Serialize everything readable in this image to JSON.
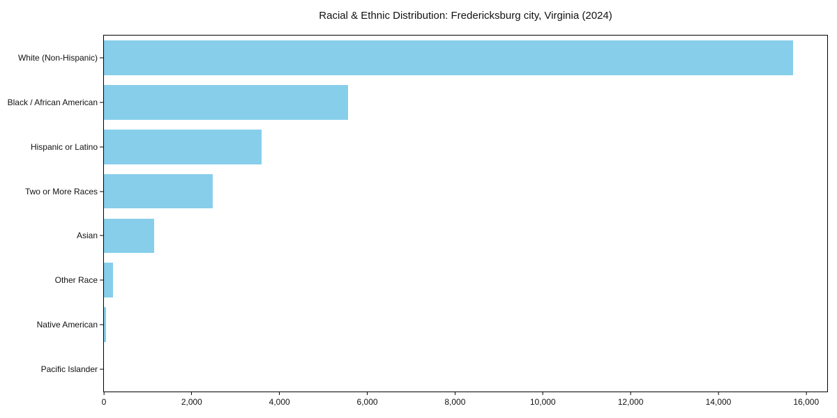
{
  "title": "Racial & Ethnic Distribution: Fredericksburg city, Virginia (2024)",
  "chart_data": {
    "type": "bar",
    "orientation": "horizontal",
    "title": "Racial & Ethnic Distribution: Fredericksburg city, Virginia (2024)",
    "categories": [
      "White (Non-Hispanic)",
      "Black / African American",
      "Hispanic or Latino",
      "Two or More Races",
      "Asian",
      "Other Race",
      "Native American",
      "Pacific Islander"
    ],
    "values": [
      15700,
      5560,
      3590,
      2480,
      1140,
      200,
      40,
      0
    ],
    "xlabel": "",
    "ylabel": "",
    "xlim": [
      0,
      16480
    ],
    "x_ticks": [
      0,
      2000,
      4000,
      6000,
      8000,
      10000,
      12000,
      14000,
      16000
    ],
    "x_tick_labels": [
      "0",
      "2,000",
      "4,000",
      "6,000",
      "8,000",
      "10,000",
      "12,000",
      "14,000",
      "16,000"
    ],
    "bar_color": "#87CEEB",
    "axis_color": "#000000",
    "text_color": "#111111",
    "background_color": "#ffffff",
    "grid": false,
    "legend": null
  }
}
